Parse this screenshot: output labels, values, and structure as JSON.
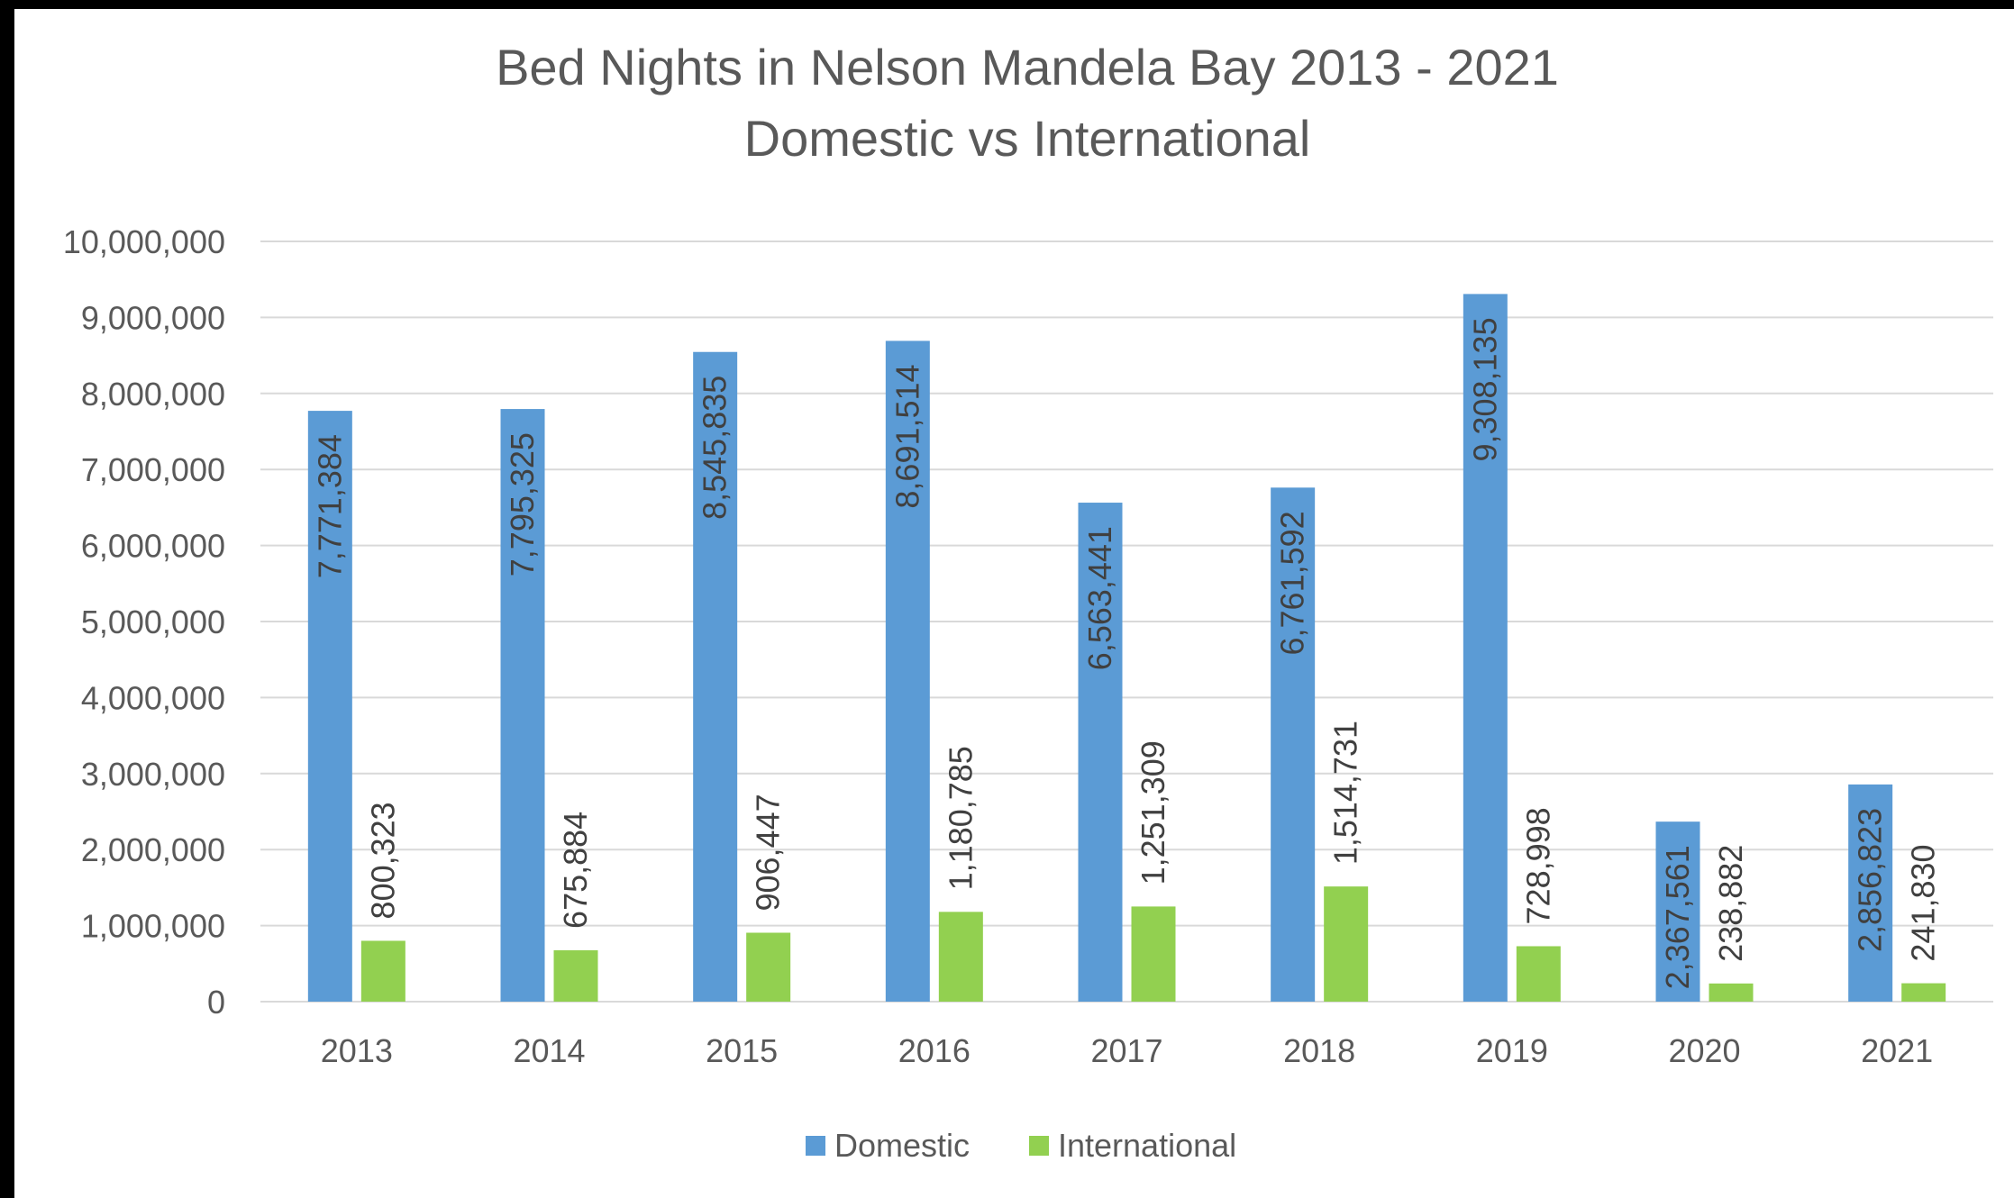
{
  "chart_data": {
    "type": "bar",
    "title": "Bed Nights in Nelson Mandela Bay 2013 - 2021",
    "subtitle": "Domestic vs International",
    "categories": [
      "2013",
      "2014",
      "2015",
      "2016",
      "2017",
      "2018",
      "2019",
      "2020",
      "2021"
    ],
    "series": [
      {
        "name": "Domestic",
        "color": "#5B9BD5",
        "values": [
          7771384,
          7795325,
          8545835,
          8691514,
          6563441,
          6761592,
          9308135,
          2367561,
          2856823
        ],
        "labels": [
          "7,771,384",
          "7,795,325",
          "8,545,835",
          "8,691,514",
          "6,563,441",
          "6,761,592",
          "9,308,135",
          "2,367,561",
          "2,856,823"
        ]
      },
      {
        "name": "International",
        "color": "#92D050",
        "values": [
          800323,
          675884,
          906447,
          1180785,
          1251309,
          1514731,
          728998,
          238882,
          241830
        ],
        "labels": [
          "800,323",
          "675,884",
          "906,447",
          "1,180,785",
          "1,251,309",
          "1,514,731",
          "728,998",
          "238,882",
          "241,830"
        ]
      }
    ],
    "ylim": [
      0,
      10000000
    ],
    "yticks": [
      "0",
      "1,000,000",
      "2,000,000",
      "3,000,000",
      "4,000,000",
      "5,000,000",
      "6,000,000",
      "7,000,000",
      "8,000,000",
      "9,000,000",
      "10,000,000"
    ],
    "grid": true,
    "legend_position": "bottom",
    "gridline_color": "#D9D9D9"
  }
}
